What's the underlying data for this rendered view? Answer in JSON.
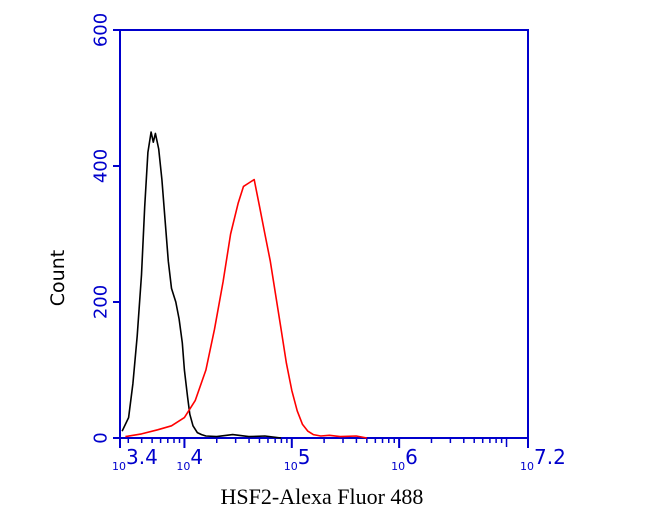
{
  "chart_data": {
    "type": "line",
    "title": "",
    "xlabel": "HSF2-Alexa Fluor 488",
    "ylabel": "Count",
    "x_scale": "log10",
    "xlim": [
      3.4,
      7.2
    ],
    "ylim": [
      0,
      600
    ],
    "y_ticks": [
      "0",
      "200",
      "400",
      "600"
    ],
    "x_ticks": [
      {
        "value": 3.4,
        "base": "10",
        "exp": "3.4"
      },
      {
        "value": 4,
        "base": "10",
        "exp": "4"
      },
      {
        "value": 5,
        "base": "10",
        "exp": "5"
      },
      {
        "value": 6,
        "base": "10",
        "exp": "6"
      },
      {
        "value": 7.2,
        "base": "10",
        "exp": "7.2"
      }
    ],
    "grid": false,
    "legend": "none",
    "axis_color": "#0000cc",
    "series": [
      {
        "color": "#000000",
        "x": [
          3.42,
          3.48,
          3.52,
          3.56,
          3.6,
          3.63,
          3.66,
          3.69,
          3.71,
          3.73,
          3.76,
          3.79,
          3.82,
          3.85,
          3.88,
          3.92,
          3.95,
          3.98,
          4.0,
          4.03,
          4.05,
          4.08,
          4.12,
          4.16,
          4.2,
          4.3,
          4.45,
          4.6,
          4.75,
          4.9
        ],
        "y": [
          10,
          30,
          80,
          150,
          240,
          340,
          420,
          450,
          435,
          448,
          425,
          380,
          320,
          260,
          220,
          200,
          175,
          140,
          100,
          60,
          35,
          18,
          8,
          5,
          3,
          2,
          5,
          2,
          3,
          0
        ]
      },
      {
        "color": "#ff0000",
        "x": [
          3.45,
          3.6,
          3.75,
          3.88,
          4.0,
          4.1,
          4.2,
          4.28,
          4.36,
          4.43,
          4.5,
          4.55,
          4.6,
          4.65,
          4.7,
          4.75,
          4.8,
          4.85,
          4.9,
          4.95,
          5.0,
          5.05,
          5.1,
          5.15,
          5.2,
          5.27,
          5.35,
          5.45,
          5.6,
          5.7
        ],
        "y": [
          2,
          6,
          12,
          18,
          30,
          55,
          100,
          160,
          230,
          300,
          345,
          370,
          375,
          380,
          340,
          300,
          260,
          210,
          160,
          110,
          70,
          40,
          20,
          10,
          5,
          3,
          4,
          2,
          3,
          0
        ]
      }
    ]
  }
}
